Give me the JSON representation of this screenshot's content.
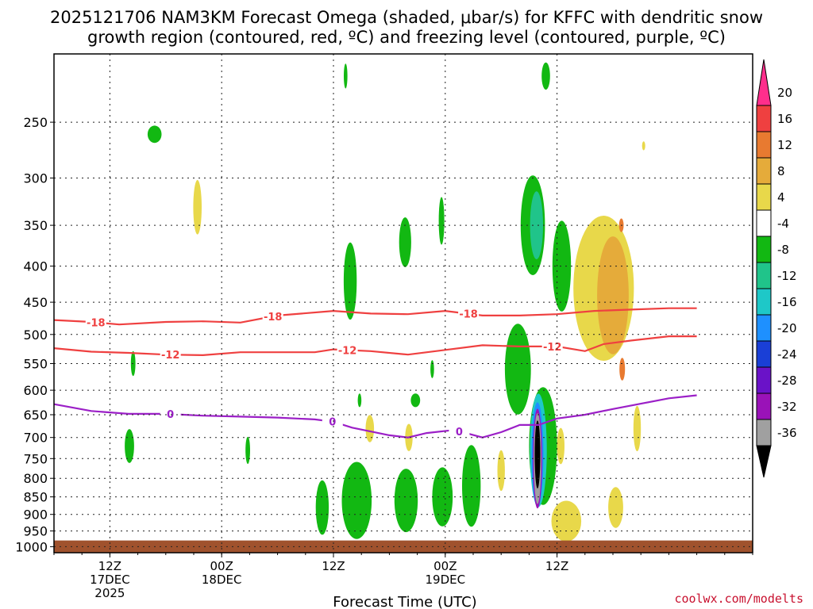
{
  "title_line1": "2025121706 NAM3KM Forecast Omega (shaded, μbar/s) for KFFC with dendritic snow",
  "title_line2": "growth region (contoured, red, ºC) and freezing level (contoured, purple, ºC)",
  "credit": "coolwx.com/modelts",
  "chart_data": {
    "type": "heatmap",
    "title": "2025121706 NAM3KM Forecast Omega (shaded, μbar/s) for KFFC with dendritic snow growth region (contoured, red, ºC) and freezing level (contoured, purple, ºC)",
    "xlabel": "Forecast Time (UTC)",
    "ylabel": "",
    "x_range_hours": [
      6,
      81
    ],
    "y_scale": "log",
    "ylim": [
      1020,
      200
    ],
    "y_ticks": [
      250,
      300,
      350,
      400,
      450,
      500,
      550,
      600,
      650,
      700,
      750,
      800,
      850,
      900,
      950,
      1000
    ],
    "x_ticks": [
      {
        "hour": 12,
        "line1": "12Z",
        "line2": "17DEC",
        "line3": "2025"
      },
      {
        "hour": 24,
        "line1": "00Z",
        "line2": "18DEC",
        "line3": ""
      },
      {
        "hour": 36,
        "line1": "12Z",
        "line2": "",
        "line3": ""
      },
      {
        "hour": 48,
        "line1": "00Z",
        "line2": "19DEC",
        "line3": ""
      },
      {
        "hour": 60,
        "line1": "12Z",
        "line2": "",
        "line3": ""
      }
    ],
    "grid": true,
    "colorbar": {
      "labels": [
        "20",
        "16",
        "12",
        "8",
        "4",
        "-4",
        "-8",
        "-12",
        "-16",
        "-20",
        "-24",
        "-28",
        "-32",
        "-36"
      ],
      "colors": [
        "#ff2e8c",
        "#ef4040",
        "#e87a30",
        "#e5ab3a",
        "#e8d84a",
        "#ffffff",
        "#12b812",
        "#20c48a",
        "#1ec8c8",
        "#1e90ff",
        "#1a3fd6",
        "#6a12c8",
        "#9a12b8",
        "#a0a0a0",
        "#000000"
      ]
    },
    "contours": [
      {
        "label": "-18",
        "color": "#ef4040",
        "points": [
          [
            6,
            477
          ],
          [
            10,
            480
          ],
          [
            13,
            484
          ],
          [
            18,
            480
          ],
          [
            22,
            479
          ],
          [
            26,
            481
          ],
          [
            30,
            470
          ],
          [
            36,
            463
          ],
          [
            40,
            467
          ],
          [
            44,
            468
          ],
          [
            48,
            463
          ],
          [
            52,
            470
          ],
          [
            56,
            470
          ],
          [
            60,
            468
          ],
          [
            64,
            463
          ],
          [
            68,
            461
          ],
          [
            72,
            459
          ],
          [
            75,
            459
          ]
        ],
        "label_hours": [
          10.5,
          29.5,
          50.5
        ]
      },
      {
        "label": "-12",
        "color": "#ef4040",
        "points": [
          [
            6,
            523
          ],
          [
            10,
            529
          ],
          [
            14,
            531
          ],
          [
            18,
            534
          ],
          [
            22,
            535
          ],
          [
            26,
            530
          ],
          [
            30,
            530
          ],
          [
            34,
            530
          ],
          [
            36,
            525
          ],
          [
            40,
            528
          ],
          [
            44,
            534
          ],
          [
            48,
            526
          ],
          [
            52,
            518
          ],
          [
            56,
            520
          ],
          [
            60,
            520
          ],
          [
            63,
            528
          ],
          [
            65,
            516
          ],
          [
            68,
            510
          ],
          [
            72,
            503
          ],
          [
            75,
            503
          ]
        ],
        "label_hours": [
          18.5,
          37.5,
          59.5
        ]
      },
      {
        "label": "0",
        "color": "#9b1fc7",
        "points": [
          [
            6,
            628
          ],
          [
            10,
            642
          ],
          [
            14,
            648
          ],
          [
            18,
            648
          ],
          [
            22,
            652
          ],
          [
            26,
            654
          ],
          [
            30,
            656
          ],
          [
            34,
            660
          ],
          [
            36,
            665
          ],
          [
            38,
            678
          ],
          [
            42,
            695
          ],
          [
            44,
            700
          ],
          [
            46,
            690
          ],
          [
            49,
            683
          ],
          [
            52,
            700
          ],
          [
            54,
            688
          ],
          [
            56,
            672
          ],
          [
            58,
            672
          ],
          [
            60,
            658
          ],
          [
            63,
            650
          ],
          [
            66,
            638
          ],
          [
            69,
            627
          ],
          [
            72,
            616
          ],
          [
            75,
            610
          ]
        ],
        "label_hours": [
          18.5,
          35.9,
          49.5
        ]
      }
    ],
    "surface_pressure_approx": 980,
    "shaded_cells": [
      {
        "color": "#12b812",
        "hour": 16.8,
        "p": 260,
        "w": 1.5,
        "h": 38
      },
      {
        "color": "#12b812",
        "hour": 37.3,
        "p": 215,
        "w": 0.4,
        "h": 55
      },
      {
        "color": "#e8d84a",
        "hour": 21.4,
        "p": 330,
        "w": 0.9,
        "h": 120
      },
      {
        "color": "#12b812",
        "hour": 37.8,
        "p": 420,
        "w": 1.4,
        "h": 170
      },
      {
        "color": "#12b812",
        "hour": 43.7,
        "p": 370,
        "w": 1.3,
        "h": 110
      },
      {
        "color": "#12b812",
        "hour": 47.6,
        "p": 345,
        "w": 0.6,
        "h": 105
      },
      {
        "color": "#12b812",
        "hour": 14.5,
        "p": 550,
        "w": 0.5,
        "h": 55
      },
      {
        "color": "#12b812",
        "hour": 14.1,
        "p": 720,
        "w": 1.0,
        "h": 75
      },
      {
        "color": "#12b812",
        "hour": 26.8,
        "p": 730,
        "w": 0.5,
        "h": 60
      },
      {
        "color": "#12b812",
        "hour": 46.6,
        "p": 560,
        "w": 0.4,
        "h": 40
      },
      {
        "color": "#12b812",
        "hour": 44.8,
        "p": 620,
        "w": 1.0,
        "h": 30
      },
      {
        "color": "#12b812",
        "hour": 38.8,
        "p": 620,
        "w": 0.4,
        "h": 30
      },
      {
        "color": "#12b812",
        "hour": 38.5,
        "p": 860,
        "w": 3.2,
        "h": 170
      },
      {
        "color": "#12b812",
        "hour": 34.8,
        "p": 880,
        "w": 1.4,
        "h": 120
      },
      {
        "color": "#12b812",
        "hour": 43.8,
        "p": 860,
        "w": 2.5,
        "h": 140
      },
      {
        "color": "#12b812",
        "hour": 47.7,
        "p": 850,
        "w": 2.2,
        "h": 130
      },
      {
        "color": "#12b812",
        "hour": 50.8,
        "p": 820,
        "w": 2.0,
        "h": 180
      },
      {
        "color": "#e8d84a",
        "hour": 39.9,
        "p": 680,
        "w": 0.9,
        "h": 60
      },
      {
        "color": "#e8d84a",
        "hour": 44.1,
        "p": 700,
        "w": 0.8,
        "h": 60
      },
      {
        "color": "#e8d84a",
        "hour": 54.0,
        "p": 780,
        "w": 0.8,
        "h": 90
      },
      {
        "color": "#12b812",
        "hour": 57.4,
        "p": 350,
        "w": 2.6,
        "h": 220
      },
      {
        "color": "#12b812",
        "hour": 55.8,
        "p": 560,
        "w": 2.8,
        "h": 200
      },
      {
        "color": "#20c48a",
        "hour": 57.8,
        "p": 350,
        "w": 1.4,
        "h": 150
      },
      {
        "color": "#12b812",
        "hour": 58.5,
        "p": 720,
        "w": 3.0,
        "h": 260
      },
      {
        "color": "#1ec8c8",
        "hour": 58.0,
        "p": 730,
        "w": 1.8,
        "h": 250
      },
      {
        "color": "#1e90ff",
        "hour": 57.9,
        "p": 740,
        "w": 1.3,
        "h": 230
      },
      {
        "color": "#9a12b8",
        "hour": 57.9,
        "p": 750,
        "w": 1.0,
        "h": 220
      },
      {
        "color": "#a0a0a0",
        "hour": 57.9,
        "p": 750,
        "w": 0.8,
        "h": 200
      },
      {
        "color": "#000000",
        "hour": 57.9,
        "p": 740,
        "w": 0.6,
        "h": 150
      },
      {
        "color": "#12b812",
        "hour": 58.8,
        "p": 215,
        "w": 0.9,
        "h": 60
      },
      {
        "color": "#12b812",
        "hour": 60.5,
        "p": 400,
        "w": 2.0,
        "h": 200
      },
      {
        "color": "#e8d84a",
        "hour": 65.0,
        "p": 430,
        "w": 6.5,
        "h": 320
      },
      {
        "color": "#e5ab3a",
        "hour": 66.0,
        "p": 440,
        "w": 3.4,
        "h": 260
      },
      {
        "color": "#e87a30",
        "hour": 67.0,
        "p": 560,
        "w": 0.6,
        "h": 50
      },
      {
        "color": "#e87a30",
        "hour": 66.9,
        "p": 350,
        "w": 0.5,
        "h": 30
      },
      {
        "color": "#e8d84a",
        "hour": 61.0,
        "p": 920,
        "w": 3.2,
        "h": 90
      },
      {
        "color": "#e8d84a",
        "hour": 66.3,
        "p": 880,
        "w": 1.6,
        "h": 90
      },
      {
        "color": "#e8d84a",
        "hour": 60.4,
        "p": 720,
        "w": 0.8,
        "h": 80
      },
      {
        "color": "#e8d84a",
        "hour": 68.6,
        "p": 680,
        "w": 0.8,
        "h": 100
      },
      {
        "color": "#e8d84a",
        "hour": 69.3,
        "p": 270,
        "w": 0.3,
        "h": 20
      }
    ]
  }
}
